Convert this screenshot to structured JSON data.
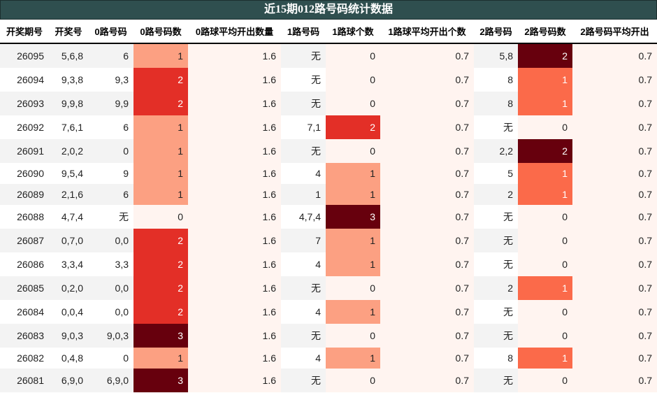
{
  "title": "近15期012路号码统计数据",
  "columns": [
    "开奖期号",
    "开奖号",
    "0路号码",
    "0路号码数",
    "0路球平均开出数量",
    "1路号码",
    "1路球个数",
    "1路球平均开出个数",
    "2路号码",
    "2路号码数",
    "2路号码平均开出"
  ],
  "colors": {
    "title_bg": "#2f4f4f",
    "heat_0": "#fff4f0",
    "heat_1": "#fca082",
    "heat_2": "#e32f27",
    "heat_3": "#67000d",
    "heat2_1": "#fb6a4a",
    "heat2_2": "#67000d"
  },
  "rows": [
    {
      "issue": "26095",
      "draw": "5,6,8",
      "r0": "6",
      "r0n": "1",
      "r0avg": "1.6",
      "r1": "无",
      "r1n": "0",
      "r1avg": "0.7",
      "r2": "5,8",
      "r2n": "2",
      "r2avg": "0.7"
    },
    {
      "issue": "26094",
      "draw": "9,3,8",
      "r0": "9,3",
      "r0n": "2",
      "r0avg": "1.6",
      "r1": "无",
      "r1n": "0",
      "r1avg": "0.7",
      "r2": "8",
      "r2n": "1",
      "r2avg": "0.7"
    },
    {
      "issue": "26093",
      "draw": "9,9,8",
      "r0": "9,9",
      "r0n": "2",
      "r0avg": "1.6",
      "r1": "无",
      "r1n": "0",
      "r1avg": "0.7",
      "r2": "8",
      "r2n": "1",
      "r2avg": "0.7"
    },
    {
      "issue": "26092",
      "draw": "7,6,1",
      "r0": "6",
      "r0n": "1",
      "r0avg": "1.6",
      "r1": "7,1",
      "r1n": "2",
      "r1avg": "0.7",
      "r2": "无",
      "r2n": "0",
      "r2avg": "0.7"
    },
    {
      "issue": "26091",
      "draw": "2,0,2",
      "r0": "0",
      "r0n": "1",
      "r0avg": "1.6",
      "r1": "无",
      "r1n": "0",
      "r1avg": "0.7",
      "r2": "2,2",
      "r2n": "2",
      "r2avg": "0.7"
    },
    {
      "issue": "26090",
      "draw": "9,5,4",
      "r0": "9",
      "r0n": "1",
      "r0avg": "1.6",
      "r1": "4",
      "r1n": "1",
      "r1avg": "0.7",
      "r2": "5",
      "r2n": "1",
      "r2avg": "0.7"
    },
    {
      "issue": "26089",
      "draw": "2,1,6",
      "r0": "6",
      "r0n": "1",
      "r0avg": "1.6",
      "r1": "1",
      "r1n": "1",
      "r1avg": "0.7",
      "r2": "2",
      "r2n": "1",
      "r2avg": "0.7"
    },
    {
      "issue": "26088",
      "draw": "4,7,4",
      "r0": "无",
      "r0n": "0",
      "r0avg": "1.6",
      "r1": "4,7,4",
      "r1n": "3",
      "r1avg": "0.7",
      "r2": "无",
      "r2n": "0",
      "r2avg": "0.7"
    },
    {
      "issue": "26087",
      "draw": "0,7,0",
      "r0": "0,0",
      "r0n": "2",
      "r0avg": "1.6",
      "r1": "7",
      "r1n": "1",
      "r1avg": "0.7",
      "r2": "无",
      "r2n": "0",
      "r2avg": "0.7"
    },
    {
      "issue": "26086",
      "draw": "3,3,4",
      "r0": "3,3",
      "r0n": "2",
      "r0avg": "1.6",
      "r1": "4",
      "r1n": "1",
      "r1avg": "0.7",
      "r2": "无",
      "r2n": "0",
      "r2avg": "0.7"
    },
    {
      "issue": "26085",
      "draw": "0,2,0",
      "r0": "0,0",
      "r0n": "2",
      "r0avg": "1.6",
      "r1": "无",
      "r1n": "0",
      "r1avg": "0.7",
      "r2": "2",
      "r2n": "1",
      "r2avg": "0.7"
    },
    {
      "issue": "26084",
      "draw": "0,0,4",
      "r0": "0,0",
      "r0n": "2",
      "r0avg": "1.6",
      "r1": "4",
      "r1n": "1",
      "r1avg": "0.7",
      "r2": "无",
      "r2n": "0",
      "r2avg": "0.7"
    },
    {
      "issue": "26083",
      "draw": "9,0,3",
      "r0": "9,0,3",
      "r0n": "3",
      "r0avg": "1.6",
      "r1": "无",
      "r1n": "0",
      "r1avg": "0.7",
      "r2": "无",
      "r2n": "0",
      "r2avg": "0.7"
    },
    {
      "issue": "26082",
      "draw": "0,4,8",
      "r0": "0",
      "r0n": "1",
      "r0avg": "1.6",
      "r1": "4",
      "r1n": "1",
      "r1avg": "0.7",
      "r2": "8",
      "r2n": "1",
      "r2avg": "0.7"
    },
    {
      "issue": "26081",
      "draw": "6,9,0",
      "r0": "6,9,0",
      "r0n": "3",
      "r0avg": "1.6",
      "r1": "无",
      "r1n": "0",
      "r1avg": "0.7",
      "r2": "无",
      "r2n": "0",
      "r2avg": "0.7"
    }
  ]
}
